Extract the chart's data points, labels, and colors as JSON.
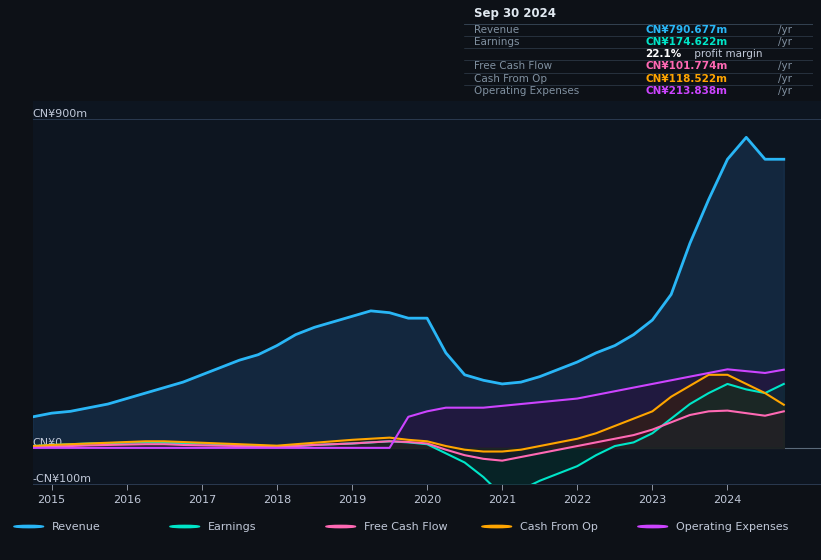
{
  "bg_color": "#0d1117",
  "plot_bg_color": "#0d1520",
  "grid_color": "#2a3a50",
  "text_color": "#c0c8d8",
  "ylabel_top": "CN¥900m",
  "ylabel_zero": "CN¥0",
  "ylabel_bottom": "-CN¥100m",
  "ylim": [
    -100,
    950
  ],
  "xlim": [
    2014.75,
    2025.3
  ],
  "xticks": [
    2015,
    2016,
    2017,
    2018,
    2019,
    2020,
    2021,
    2022,
    2023,
    2024
  ],
  "info_box": {
    "title": "Sep 30 2024",
    "rows": [
      {
        "label": "Revenue",
        "value": "CN¥790.677m",
        "value_color": "#29b6f6"
      },
      {
        "label": "Earnings",
        "value": "CN¥174.622m",
        "value_color": "#00e5c8"
      },
      {
        "label": "",
        "value": "22.1%",
        "value_color": "#ffffff",
        "suffix": " profit margin"
      },
      {
        "label": "Free Cash Flow",
        "value": "CN¥101.774m",
        "value_color": "#ff69b4"
      },
      {
        "label": "Cash From Op",
        "value": "CN¥118.522m",
        "value_color": "#ffa500"
      },
      {
        "label": "Operating Expenses",
        "value": "CN¥213.838m",
        "value_color": "#cc44ff"
      }
    ]
  },
  "series": {
    "revenue": {
      "color": "#29b6f6",
      "fill_color": "#1a3a5c",
      "fill_alpha": 0.5,
      "lw": 2.0,
      "years": [
        2014.75,
        2015.0,
        2015.25,
        2015.5,
        2015.75,
        2016.0,
        2016.25,
        2016.5,
        2016.75,
        2017.0,
        2017.25,
        2017.5,
        2017.75,
        2018.0,
        2018.25,
        2018.5,
        2018.75,
        2019.0,
        2019.25,
        2019.5,
        2019.75,
        2020.0,
        2020.25,
        2020.5,
        2020.75,
        2021.0,
        2021.25,
        2021.5,
        2021.75,
        2022.0,
        2022.25,
        2022.5,
        2022.75,
        2023.0,
        2023.25,
        2023.5,
        2023.75,
        2024.0,
        2024.25,
        2024.5,
        2024.75
      ],
      "values": [
        85,
        95,
        100,
        110,
        120,
        135,
        150,
        165,
        180,
        200,
        220,
        240,
        255,
        280,
        310,
        330,
        345,
        360,
        375,
        370,
        355,
        355,
        260,
        200,
        185,
        175,
        180,
        195,
        215,
        235,
        260,
        280,
        310,
        350,
        420,
        560,
        680,
        790,
        850,
        790,
        790
      ]
    },
    "earnings": {
      "color": "#00e5c8",
      "fill_color": "#003a30",
      "fill_alpha": 0.4,
      "lw": 1.5,
      "years": [
        2014.75,
        2015.0,
        2015.25,
        2015.5,
        2015.75,
        2016.0,
        2016.25,
        2016.5,
        2016.75,
        2017.0,
        2017.25,
        2017.5,
        2017.75,
        2018.0,
        2018.25,
        2018.5,
        2018.75,
        2019.0,
        2019.25,
        2019.5,
        2019.75,
        2020.0,
        2020.25,
        2020.5,
        2020.75,
        2021.0,
        2021.25,
        2021.5,
        2021.75,
        2022.0,
        2022.25,
        2022.5,
        2022.75,
        2023.0,
        2023.25,
        2023.5,
        2023.75,
        2024.0,
        2024.25,
        2024.5,
        2024.75
      ],
      "values": [
        5,
        8,
        10,
        12,
        13,
        14,
        15,
        14,
        13,
        12,
        10,
        8,
        5,
        3,
        5,
        8,
        10,
        12,
        15,
        18,
        15,
        10,
        -15,
        -40,
        -80,
        -130,
        -115,
        -90,
        -70,
        -50,
        -20,
        5,
        15,
        40,
        80,
        120,
        150,
        175,
        160,
        150,
        175
      ]
    },
    "free_cash_flow": {
      "color": "#ff69b4",
      "fill_color": "#4a0020",
      "fill_alpha": 0.35,
      "lw": 1.5,
      "years": [
        2014.75,
        2015.0,
        2015.25,
        2015.5,
        2015.75,
        2016.0,
        2016.25,
        2016.5,
        2016.75,
        2017.0,
        2017.25,
        2017.5,
        2017.75,
        2018.0,
        2018.25,
        2018.5,
        2018.75,
        2019.0,
        2019.25,
        2019.5,
        2019.75,
        2020.0,
        2020.25,
        2020.5,
        2020.75,
        2021.0,
        2021.25,
        2021.5,
        2021.75,
        2022.0,
        2022.25,
        2022.5,
        2022.75,
        2023.0,
        2023.25,
        2023.5,
        2023.75,
        2024.0,
        2024.25,
        2024.5,
        2024.75
      ],
      "values": [
        2,
        4,
        5,
        7,
        8,
        9,
        10,
        10,
        8,
        7,
        6,
        5,
        3,
        2,
        5,
        8,
        10,
        12,
        15,
        18,
        16,
        12,
        -5,
        -20,
        -30,
        -35,
        -25,
        -15,
        -5,
        5,
        15,
        25,
        35,
        50,
        70,
        90,
        100,
        102,
        95,
        88,
        100
      ]
    },
    "cash_from_op": {
      "color": "#ffa500",
      "fill_color": "#3d2000",
      "fill_alpha": 0.5,
      "lw": 1.5,
      "years": [
        2014.75,
        2015.0,
        2015.25,
        2015.5,
        2015.75,
        2016.0,
        2016.25,
        2016.5,
        2016.75,
        2017.0,
        2017.25,
        2017.5,
        2017.75,
        2018.0,
        2018.25,
        2018.5,
        2018.75,
        2019.0,
        2019.25,
        2019.5,
        2019.75,
        2020.0,
        2020.25,
        2020.5,
        2020.75,
        2021.0,
        2021.25,
        2021.5,
        2021.75,
        2022.0,
        2022.25,
        2022.5,
        2022.75,
        2023.0,
        2023.25,
        2023.5,
        2023.75,
        2024.0,
        2024.25,
        2024.5,
        2024.75
      ],
      "values": [
        5,
        8,
        10,
        12,
        14,
        16,
        18,
        18,
        16,
        14,
        12,
        10,
        8,
        6,
        10,
        14,
        18,
        22,
        25,
        28,
        22,
        18,
        5,
        -5,
        -10,
        -10,
        -5,
        5,
        15,
        25,
        40,
        60,
        80,
        100,
        140,
        170,
        200,
        200,
        175,
        150,
        118
      ]
    },
    "operating_expenses": {
      "color": "#cc44ff",
      "fill_color": "#2a1040",
      "fill_alpha": 0.6,
      "lw": 1.5,
      "years": [
        2014.75,
        2015.0,
        2015.25,
        2015.5,
        2015.75,
        2016.0,
        2016.25,
        2016.5,
        2016.75,
        2017.0,
        2017.25,
        2017.5,
        2017.75,
        2018.0,
        2018.25,
        2018.5,
        2018.75,
        2019.0,
        2019.25,
        2019.5,
        2019.75,
        2020.0,
        2020.25,
        2020.5,
        2020.75,
        2021.0,
        2021.25,
        2021.5,
        2021.75,
        2022.0,
        2022.25,
        2022.5,
        2022.75,
        2023.0,
        2023.25,
        2023.5,
        2023.75,
        2024.0,
        2024.25,
        2024.5,
        2024.75
      ],
      "values": [
        0,
        0,
        0,
        0,
        0,
        0,
        0,
        0,
        0,
        0,
        0,
        0,
        0,
        0,
        0,
        0,
        0,
        0,
        0,
        0,
        85,
        100,
        110,
        110,
        110,
        115,
        120,
        125,
        130,
        135,
        145,
        155,
        165,
        175,
        185,
        195,
        205,
        215,
        210,
        205,
        214
      ]
    }
  },
  "legend": [
    {
      "label": "Revenue",
      "color": "#29b6f6"
    },
    {
      "label": "Earnings",
      "color": "#00e5c8"
    },
    {
      "label": "Free Cash Flow",
      "color": "#ff69b4"
    },
    {
      "label": "Cash From Op",
      "color": "#ffa500"
    },
    {
      "label": "Operating Expenses",
      "color": "#cc44ff"
    }
  ]
}
